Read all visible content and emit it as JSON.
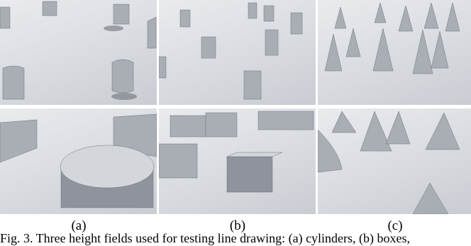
{
  "figure": {
    "panel_labels": [
      "(a)",
      "(b)",
      "(c)"
    ],
    "caption": "Fig. 3. Three height fields used for testing line drawing: (a) cylinders, (b) boxes,"
  }
}
